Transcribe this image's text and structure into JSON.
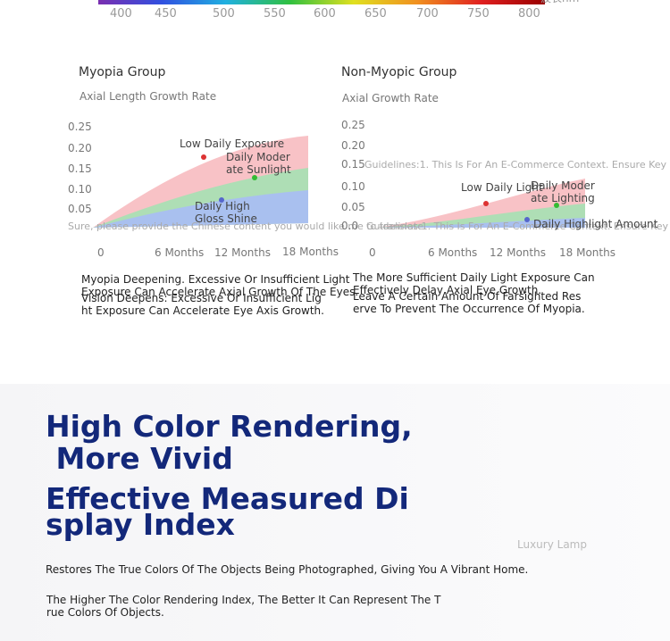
{
  "spectrum": {
    "ticks": [
      "400",
      "450",
      "500",
      "550",
      "600",
      "650",
      "700",
      "750",
      "800"
    ],
    "unit": "波长nm"
  },
  "myopia": {
    "title": "Myopia Group",
    "axis_label": "Axial Length Growth Rate",
    "yticks": [
      "0.25",
      "0.20",
      "0.15",
      "0.10",
      "0.05"
    ],
    "xticks": [
      "0",
      "6 Months",
      "12 Months",
      "18 Months"
    ],
    "labels": {
      "low": "Low Daily Exposure",
      "moderate": [
        "Daily Moder",
        "ate Sunlight"
      ],
      "high": [
        "Daily High",
        "Gloss Shine"
      ]
    },
    "caption_1": [
      "Myopia Deepening. Excessive Or Insufficient Light",
      "Exposure Can Accelerate Axial Growth Of The Eyes."
    ],
    "caption_2": [
      "Vision Deepens: Excessive Or Insufficient Lig",
      "ht Exposure Can Accelerate Eye Axis Growth."
    ]
  },
  "overlay_1": "Sure, please provide the Chinese content you would like me to translate.",
  "overlay_2": "Guidelines:1. This Is For An E-Commerce Context. Ensure Key",
  "non_myopic": {
    "title": "Non-Myopic Group",
    "axis_label": "Axial Growth Rate",
    "yticks": [
      "0.25",
      "0.20",
      "0.15",
      "0.10",
      "0.05",
      "0.0"
    ],
    "xticks": [
      "0",
      "6 Months",
      "12 Months",
      "18 Months"
    ],
    "labels": {
      "low": "Low Daily Light",
      "moderate": [
        "Daily Moder",
        "ate Lighting"
      ],
      "high": "Daily Highlight Amount"
    },
    "caption_1": [
      "The More Sufficient Daily Light Exposure Can",
      "Effectively Delay Axial Eye Growth."
    ],
    "caption_2": [
      "Leave A Certain Amount Of Farsighted Res",
      "erve To Prevent The Occurrence Of Myopia."
    ]
  },
  "feature": {
    "title_1": [
      "High Color Rendering,",
      " More Vivid"
    ],
    "title_2": [
      "Effective Measured Di",
      "splay Index"
    ],
    "watermark": "Luxury Lamp",
    "text_1": "Restores The True Colors Of The Objects Being Photographed, Giving You A Vibrant Home.",
    "text_2": [
      "The Higher The Color Rendering Index, The Better It Can Represent The T",
      "rue Colors Of Objects."
    ]
  }
}
